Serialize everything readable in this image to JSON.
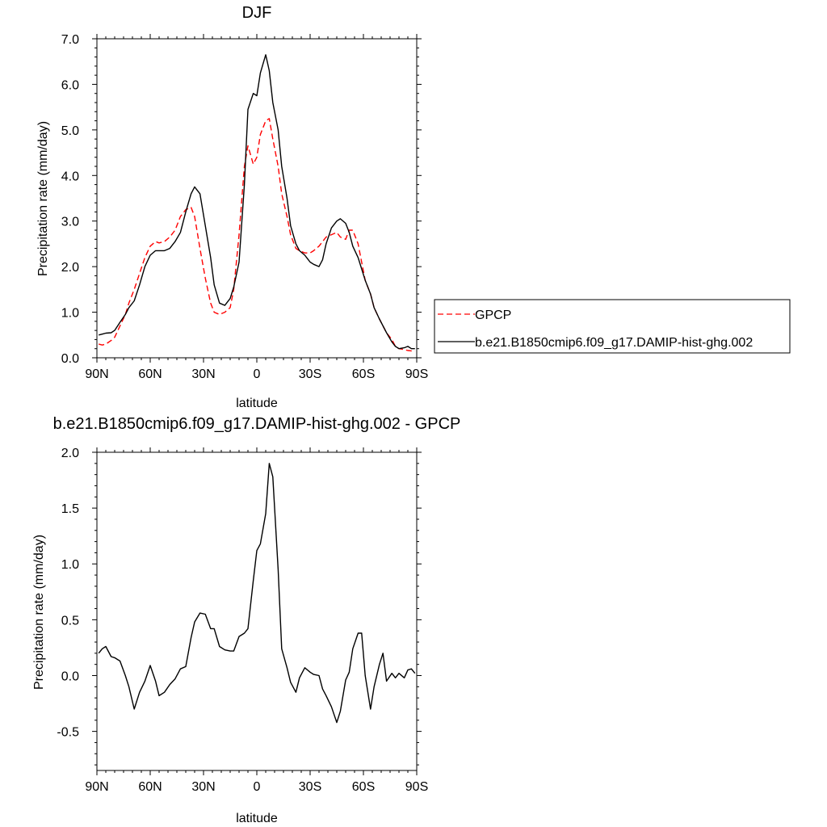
{
  "chart_data": [
    {
      "type": "line",
      "title": "DJF",
      "xlabel": "latitude",
      "ylabel": "Precipitation rate (mm/day)",
      "xlim": [
        -90,
        90
      ],
      "ylim": [
        0,
        7
      ],
      "x_ticks": [
        {
          "value": -90,
          "label": "90N"
        },
        {
          "value": -60,
          "label": "60N"
        },
        {
          "value": -30,
          "label": "30N"
        },
        {
          "value": 0,
          "label": "0"
        },
        {
          "value": 30,
          "label": "30S"
        },
        {
          "value": 60,
          "label": "60S"
        },
        {
          "value": 90,
          "label": "90S"
        }
      ],
      "y_ticks": [
        {
          "value": 0,
          "label": "0.0"
        },
        {
          "value": 1,
          "label": "1.0"
        },
        {
          "value": 2,
          "label": "2.0"
        },
        {
          "value": 3,
          "label": "3.0"
        },
        {
          "value": 4,
          "label": "4.0"
        },
        {
          "value": 5,
          "label": "5.0"
        },
        {
          "value": 6,
          "label": "6.0"
        },
        {
          "value": 7,
          "label": "7.0"
        }
      ],
      "legend": {
        "position": "right",
        "label_gpcp": "GPCP",
        "label_model": "b.e21.B1850cmip6.f09_g17.DAMIP-hist-ghg.002"
      },
      "series": [
        {
          "name": "GPCP",
          "color": "#ff0000",
          "dash": "dashed",
          "x": [
            -89,
            -87,
            -85,
            -82,
            -80,
            -77,
            -74,
            -72,
            -69,
            -66,
            -63,
            -60,
            -57,
            -55,
            -52,
            -49,
            -46,
            -43,
            -40,
            -37,
            -35,
            -32,
            -29,
            -26,
            -24,
            -21,
            -18,
            -15,
            -13,
            -10,
            -7,
            -5,
            -2,
            0,
            2,
            5,
            7,
            9,
            12,
            14,
            17,
            19,
            22,
            24,
            27,
            30,
            32,
            35,
            37,
            39,
            42,
            45,
            47,
            50,
            52,
            54,
            57,
            59,
            61,
            64,
            66,
            69,
            71,
            73,
            76,
            78,
            80,
            83,
            85,
            87,
            89
          ],
          "y": [
            0.3,
            0.28,
            0.3,
            0.38,
            0.45,
            0.7,
            0.95,
            1.2,
            1.5,
            1.85,
            2.2,
            2.45,
            2.55,
            2.52,
            2.55,
            2.65,
            2.8,
            3.1,
            3.25,
            3.3,
            3.1,
            2.4,
            1.75,
            1.2,
            1.0,
            0.95,
            1.0,
            1.1,
            1.5,
            2.7,
            4.2,
            4.65,
            4.25,
            4.4,
            4.9,
            5.2,
            5.25,
            4.8,
            4.2,
            3.6,
            3.1,
            2.7,
            2.4,
            2.35,
            2.3,
            2.3,
            2.35,
            2.45,
            2.55,
            2.65,
            2.7,
            2.75,
            2.65,
            2.6,
            2.8,
            2.8,
            2.5,
            2.1,
            1.7,
            1.4,
            1.1,
            0.85,
            0.7,
            0.55,
            0.4,
            0.25,
            0.2,
            0.18,
            0.16,
            0.15,
            0.15
          ]
        },
        {
          "name": "b.e21.B1850cmip6.f09_g17.DAMIP-hist-ghg.002",
          "color": "#000000",
          "dash": "solid",
          "x": [
            -89,
            -87,
            -85,
            -82,
            -80,
            -77,
            -74,
            -72,
            -69,
            -66,
            -63,
            -60,
            -57,
            -55,
            -52,
            -49,
            -46,
            -43,
            -40,
            -37,
            -35,
            -32,
            -29,
            -26,
            -24,
            -21,
            -18,
            -15,
            -13,
            -10,
            -7,
            -5,
            -2,
            0,
            2,
            5,
            7,
            9,
            12,
            14,
            17,
            19,
            22,
            24,
            27,
            30,
            32,
            35,
            37,
            39,
            42,
            45,
            47,
            50,
            52,
            54,
            57,
            59,
            61,
            64,
            66,
            69,
            71,
            73,
            76,
            78,
            80,
            83,
            85,
            87,
            89
          ],
          "y": [
            0.5,
            0.52,
            0.54,
            0.55,
            0.6,
            0.78,
            0.95,
            1.1,
            1.25,
            1.6,
            2.0,
            2.25,
            2.35,
            2.35,
            2.35,
            2.4,
            2.55,
            2.75,
            3.2,
            3.6,
            3.75,
            3.6,
            2.9,
            2.2,
            1.6,
            1.2,
            1.15,
            1.3,
            1.55,
            2.1,
            3.8,
            5.45,
            5.8,
            5.75,
            6.25,
            6.65,
            6.3,
            5.6,
            5.0,
            4.2,
            3.5,
            2.9,
            2.5,
            2.35,
            2.25,
            2.1,
            2.05,
            2.0,
            2.15,
            2.5,
            2.85,
            3.0,
            3.05,
            2.95,
            2.75,
            2.45,
            2.2,
            1.95,
            1.7,
            1.4,
            1.1,
            0.85,
            0.7,
            0.55,
            0.35,
            0.25,
            0.2,
            0.22,
            0.25,
            0.2,
            0.2
          ]
        }
      ]
    },
    {
      "type": "line",
      "title": "b.e21.B1850cmip6.f09_g17.DAMIP-hist-ghg.002 - GPCP",
      "xlabel": "latitude",
      "ylabel": "Precipitation rate (mm/day)",
      "xlim": [
        -90,
        90
      ],
      "ylim": [
        -0.85,
        2.0
      ],
      "x_ticks": [
        {
          "value": -90,
          "label": "90N"
        },
        {
          "value": -60,
          "label": "60N"
        },
        {
          "value": -30,
          "label": "30N"
        },
        {
          "value": 0,
          "label": "0"
        },
        {
          "value": 30,
          "label": "30S"
        },
        {
          "value": 60,
          "label": "60S"
        },
        {
          "value": 90,
          "label": "90S"
        }
      ],
      "y_ticks": [
        {
          "value": -0.5,
          "label": "-0.5"
        },
        {
          "value": 0,
          "label": "0.0"
        },
        {
          "value": 0.5,
          "label": "0.5"
        },
        {
          "value": 1.0,
          "label": "1.0"
        },
        {
          "value": 1.5,
          "label": "1.5"
        },
        {
          "value": 2.0,
          "label": "2.0"
        }
      ],
      "series": [
        {
          "color": "#000000",
          "dash": "solid",
          "x": [
            -89,
            -87,
            -85,
            -82,
            -80,
            -77,
            -74,
            -72,
            -69,
            -66,
            -63,
            -60,
            -57,
            -55,
            -52,
            -49,
            -46,
            -43,
            -40,
            -37,
            -35,
            -32,
            -29,
            -26,
            -24,
            -21,
            -18,
            -15,
            -13,
            -10,
            -7,
            -5,
            -2,
            0,
            2,
            5,
            7,
            9,
            12,
            14,
            17,
            19,
            22,
            24,
            27,
            30,
            32,
            35,
            37,
            39,
            42,
            45,
            47,
            50,
            52,
            54,
            57,
            59,
            61,
            64,
            66,
            69,
            71,
            73,
            76,
            78,
            80,
            83,
            85,
            87,
            89
          ],
          "y": [
            0.2,
            0.24,
            0.26,
            0.17,
            0.16,
            0.13,
            0.0,
            -0.1,
            -0.3,
            -0.15,
            -0.05,
            0.09,
            -0.05,
            -0.18,
            -0.15,
            -0.08,
            -0.03,
            0.06,
            0.08,
            0.34,
            0.48,
            0.56,
            0.55,
            0.42,
            0.42,
            0.26,
            0.23,
            0.22,
            0.22,
            0.35,
            0.38,
            0.42,
            0.85,
            1.12,
            1.18,
            1.45,
            1.9,
            1.78,
            0.95,
            0.24,
            0.07,
            -0.06,
            -0.15,
            -0.02,
            0.07,
            0.03,
            0.01,
            0.0,
            -0.12,
            -0.18,
            -0.28,
            -0.42,
            -0.32,
            -0.04,
            0.03,
            0.24,
            0.38,
            0.38,
            0.0,
            -0.3,
            -0.1,
            0.1,
            0.2,
            -0.05,
            0.02,
            -0.02,
            0.02,
            -0.02,
            0.05,
            0.06,
            0.02
          ]
        }
      ]
    }
  ]
}
